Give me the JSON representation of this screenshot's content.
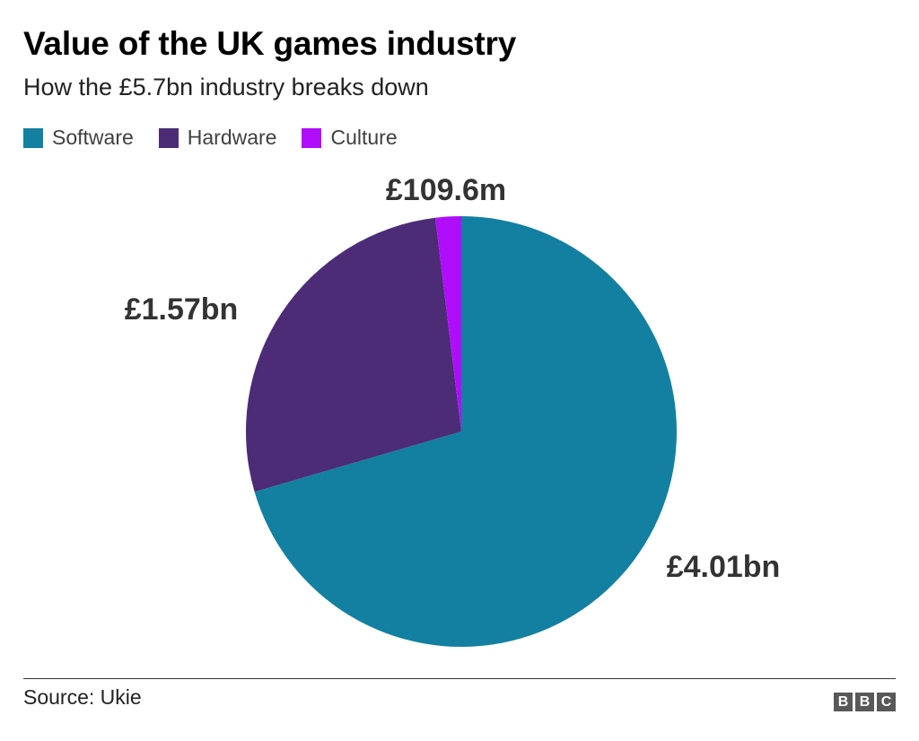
{
  "chart_data": {
    "type": "pie",
    "title": "Value of the UK games industry",
    "subtitle": "How the £5.7bn industry breaks down",
    "slices": [
      {
        "name": "Software",
        "value": 4.01,
        "label": "£4.01bn",
        "color": "#1380A1"
      },
      {
        "name": "Hardware",
        "value": 1.57,
        "label": "£1.57bn",
        "color": "#4C2C76"
      },
      {
        "name": "Culture",
        "value": 0.1096,
        "label": "£109.6m",
        "color": "#B00EFA"
      }
    ],
    "legend_position": "top-left"
  },
  "footer": {
    "source": "Source: Ukie",
    "logo": [
      "B",
      "B",
      "C"
    ]
  }
}
